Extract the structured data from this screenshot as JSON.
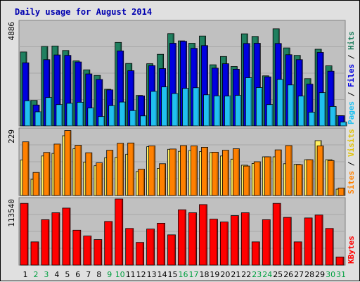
{
  "chart_data": {
    "type": "bar",
    "title": "Daily usage for August 2014",
    "days": [
      "1",
      "2",
      "3",
      "4",
      "5",
      "6",
      "7",
      "8",
      "9",
      "10",
      "11",
      "12",
      "13",
      "14",
      "15",
      "16",
      "17",
      "18",
      "19",
      "20",
      "21",
      "22",
      "23",
      "24",
      "25",
      "26",
      "27",
      "28",
      "29",
      "30",
      "31"
    ],
    "weekend_days": [
      "2",
      "3",
      "9",
      "10",
      "16",
      "17",
      "23",
      "24",
      "30",
      "31"
    ],
    "panels": [
      {
        "id": "hits",
        "max_label": "4886",
        "ymax": 4886,
        "series": [
          {
            "name": "Hits",
            "color": "#208060",
            "values": [
              3470,
              1200,
              3730,
              3750,
              3540,
              3050,
              2630,
              2370,
              1720,
              3920,
              2930,
              1430,
              2920,
              3360,
              4330,
              3990,
              3880,
              4220,
              2870,
              3260,
              2790,
              4320,
              4200,
              2350,
              4560,
              3660,
              3310,
              2220,
              3600,
              2820,
              480
            ]
          },
          {
            "name": "Files",
            "color": "#0000e0",
            "values": [
              2960,
              980,
              3110,
              3330,
              3310,
              3000,
              2440,
              2180,
              1690,
              3520,
              2590,
              1410,
              2830,
              2690,
              3880,
              3970,
              3640,
              3770,
              2710,
              2920,
              2660,
              3870,
              3880,
              2300,
              3870,
              3340,
              3110,
              1960,
              3450,
              2570,
              480
            ]
          },
          {
            "name": "Pages",
            "color": "#20c0f0",
            "values": [
              1180,
              660,
              1330,
              1000,
              1060,
              1110,
              840,
              440,
              950,
              1120,
              720,
              470,
              1620,
              1830,
              1520,
              1760,
              1790,
              1460,
              1410,
              1400,
              1430,
              2260,
              1800,
              1000,
              2180,
              1920,
              1400,
              640,
              1560,
              910,
              180
            ]
          }
        ]
      },
      {
        "id": "visits",
        "max_label": "229",
        "ymax": 229,
        "series": [
          {
            "name": "Visits",
            "color": "#fff060",
            "values": [
              123,
              56,
              137,
              146,
              207,
              162,
              116,
              103,
              131,
              132,
              143,
              83,
              169,
              94,
              160,
              153,
              156,
              152,
              149,
              137,
              126,
              105,
              111,
              134,
              134,
              110,
              108,
              124,
              190,
              124,
              22
            ]
          },
          {
            "name": "Sites",
            "color": "#ff8000",
            "values": [
              186,
              80,
              149,
              178,
              225,
              174,
              148,
              113,
              157,
              181,
              182,
              91,
              172,
              110,
              161,
              173,
              172,
              167,
              150,
              157,
              162,
              102,
              117,
              134,
              158,
              173,
              107,
              124,
              172,
              121,
              26
            ]
          }
        ]
      },
      {
        "id": "kbytes",
        "max_label": "113540",
        "ymax": 113540,
        "series": [
          {
            "name": "KBytes",
            "color": "#ff0000",
            "values": [
              106000,
              40000,
              78000,
              90000,
              98000,
              60000,
              50000,
              44000,
              75000,
              113500,
              63000,
              39000,
              62000,
              72000,
              52000,
              95000,
              90000,
              104000,
              79000,
              74000,
              85000,
              90000,
              40000,
              78000,
              106000,
              82000,
              40000,
              81000,
              86000,
              63000,
              14000
            ]
          }
        ]
      }
    ],
    "right_label_1": [
      "Pages",
      "Files",
      "Hits"
    ],
    "right_label_2": [
      "Sites",
      "Visits"
    ],
    "right_label_3": [
      "KBytes"
    ],
    "label_separator": " / "
  }
}
